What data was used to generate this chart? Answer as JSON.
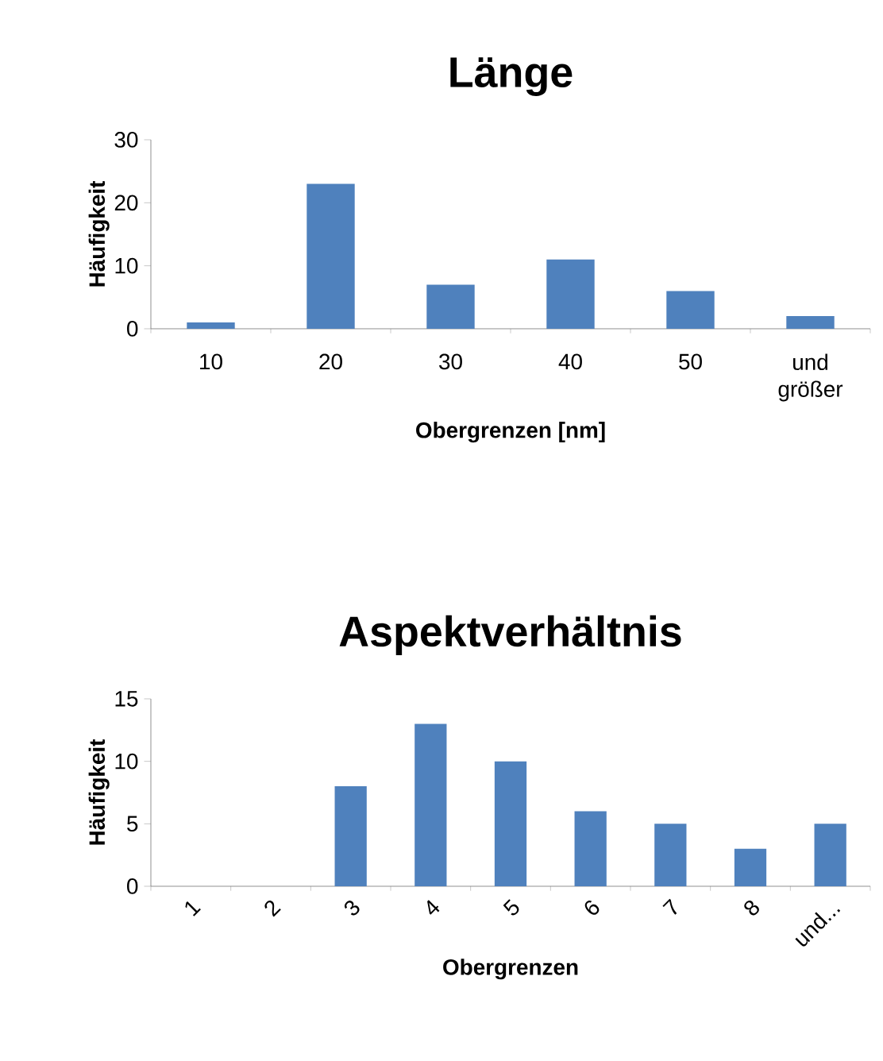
{
  "chart_data": [
    {
      "type": "bar",
      "title": "Länge",
      "xlabel": "Obergrenzen [nm]",
      "ylabel": "Häufigkeit",
      "categories": [
        "10",
        "20",
        "30",
        "40",
        "50",
        "und größer"
      ],
      "values": [
        1,
        23,
        7,
        11,
        6,
        2
      ],
      "color": "#4f81bd",
      "ylim": [
        0,
        30
      ],
      "yticks": [
        0,
        10,
        20,
        30
      ]
    },
    {
      "type": "bar",
      "title": "Aspektverhältnis",
      "xlabel": "Obergrenzen",
      "ylabel": "Häufigkeit",
      "categories": [
        "1",
        "2",
        "3",
        "4",
        "5",
        "6",
        "7",
        "8",
        "und..."
      ],
      "values": [
        0,
        0,
        8,
        13,
        10,
        6,
        5,
        3,
        5
      ],
      "color": "#4f81bd",
      "ylim": [
        0,
        15
      ],
      "yticks": [
        0,
        5,
        10,
        15
      ]
    }
  ]
}
